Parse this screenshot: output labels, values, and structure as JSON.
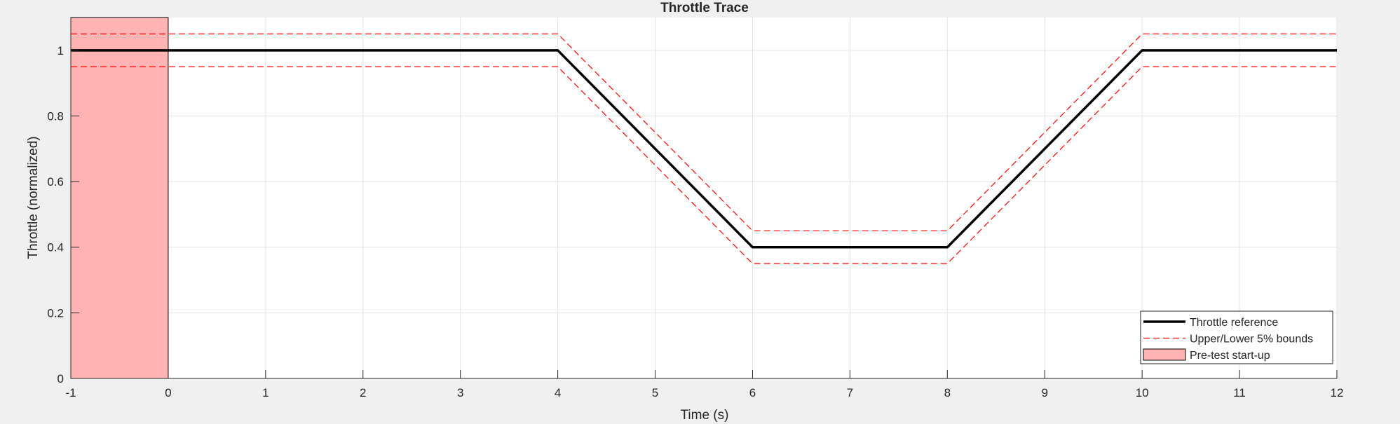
{
  "chart_data": {
    "type": "line",
    "title": "Throttle Trace",
    "xlabel": "Time (s)",
    "ylabel": "Throttle (normalized)",
    "xlim": [
      -1,
      12
    ],
    "ylim": [
      0,
      1.1
    ],
    "xticks": [
      -1,
      0,
      1,
      2,
      3,
      4,
      5,
      6,
      7,
      8,
      9,
      10,
      11,
      12
    ],
    "yticks": [
      0,
      0.2,
      0.4,
      0.6,
      0.8,
      1
    ],
    "grid": true,
    "legend_location": "bottom-right",
    "shaded_regions": [
      {
        "name": "Pre-test start-up",
        "x_start": -1,
        "x_end": 0,
        "color": "#ffb3b3"
      }
    ],
    "series": [
      {
        "name": "Throttle reference",
        "style": "solid",
        "color": "#000000",
        "x": [
          -1,
          4,
          6,
          8,
          10,
          12
        ],
        "y": [
          1,
          1,
          0.4,
          0.4,
          1,
          1
        ]
      },
      {
        "name": "Upper/Lower 5% bounds",
        "style": "dashed",
        "color": "#ff0000",
        "x": [
          -1,
          4,
          6,
          8,
          10,
          12
        ],
        "y": [
          1.05,
          1.05,
          0.45,
          0.45,
          1.05,
          1.05
        ]
      },
      {
        "name": "",
        "style": "dashed",
        "color": "#ff0000",
        "x": [
          -1,
          4,
          6,
          8,
          10,
          12
        ],
        "y": [
          0.95,
          0.95,
          0.35,
          0.35,
          0.95,
          0.95
        ]
      }
    ]
  }
}
